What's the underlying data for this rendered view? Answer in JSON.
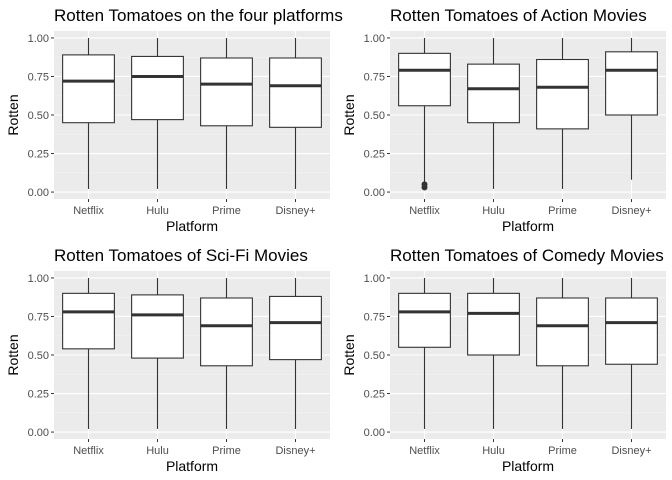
{
  "chart_data": [
    {
      "type": "boxplot",
      "title": "Rotten Tomatoes on the four platforms",
      "xlabel": "Platform",
      "ylabel": "Rotten",
      "ylim": [
        0,
        1
      ],
      "yticks": [
        "0.00",
        "0.25",
        "0.50",
        "0.75",
        "1.00"
      ],
      "categories": [
        "Netflix",
        "Hulu",
        "Prime",
        "Disney+"
      ],
      "boxes": [
        {
          "min": 0.02,
          "q1": 0.45,
          "median": 0.72,
          "q3": 0.89,
          "max": 1.0,
          "outliers": []
        },
        {
          "min": 0.02,
          "q1": 0.47,
          "median": 0.75,
          "q3": 0.88,
          "max": 1.0,
          "outliers": []
        },
        {
          "min": 0.02,
          "q1": 0.43,
          "median": 0.7,
          "q3": 0.87,
          "max": 1.0,
          "outliers": []
        },
        {
          "min": 0.02,
          "q1": 0.42,
          "median": 0.69,
          "q3": 0.87,
          "max": 1.0,
          "outliers": []
        }
      ]
    },
    {
      "type": "boxplot",
      "title": "Rotten Tomatoes of Action Movies",
      "xlabel": "Platform",
      "ylabel": "Rotten",
      "ylim": [
        0,
        1
      ],
      "yticks": [
        "0.00",
        "0.25",
        "0.50",
        "0.75",
        "1.00"
      ],
      "categories": [
        "Netflix",
        "Hulu",
        "Prime",
        "Disney+"
      ],
      "boxes": [
        {
          "min": 0.06,
          "q1": 0.56,
          "median": 0.79,
          "q3": 0.9,
          "max": 1.0,
          "outliers": [
            0.03,
            0.05
          ]
        },
        {
          "min": 0.02,
          "q1": 0.45,
          "median": 0.67,
          "q3": 0.83,
          "max": 1.0,
          "outliers": []
        },
        {
          "min": 0.02,
          "q1": 0.41,
          "median": 0.68,
          "q3": 0.86,
          "max": 1.0,
          "outliers": []
        },
        {
          "min": 0.08,
          "q1": 0.5,
          "median": 0.79,
          "q3": 0.91,
          "max": 1.0,
          "outliers": []
        }
      ]
    },
    {
      "type": "boxplot",
      "title": "Rotten Tomatoes of Sci-Fi Movies",
      "xlabel": "Platform",
      "ylabel": "Rotten",
      "ylim": [
        0,
        1
      ],
      "yticks": [
        "0.00",
        "0.25",
        "0.50",
        "0.75",
        "1.00"
      ],
      "categories": [
        "Netflix",
        "Hulu",
        "Prime",
        "Disney+"
      ],
      "boxes": [
        {
          "min": 0.02,
          "q1": 0.54,
          "median": 0.78,
          "q3": 0.9,
          "max": 1.0,
          "outliers": []
        },
        {
          "min": 0.02,
          "q1": 0.48,
          "median": 0.76,
          "q3": 0.89,
          "max": 1.0,
          "outliers": []
        },
        {
          "min": 0.02,
          "q1": 0.43,
          "median": 0.69,
          "q3": 0.87,
          "max": 1.0,
          "outliers": []
        },
        {
          "min": 0.02,
          "q1": 0.47,
          "median": 0.71,
          "q3": 0.88,
          "max": 1.0,
          "outliers": []
        }
      ]
    },
    {
      "type": "boxplot",
      "title": "Rotten Tomatoes of Comedy Movies",
      "xlabel": "Platform",
      "ylabel": "Rotten",
      "ylim": [
        0,
        1
      ],
      "yticks": [
        "0.00",
        "0.25",
        "0.50",
        "0.75",
        "1.00"
      ],
      "categories": [
        "Netflix",
        "Hulu",
        "Prime",
        "Disney+"
      ],
      "boxes": [
        {
          "min": 0.02,
          "q1": 0.55,
          "median": 0.78,
          "q3": 0.9,
          "max": 1.0,
          "outliers": []
        },
        {
          "min": 0.02,
          "q1": 0.5,
          "median": 0.77,
          "q3": 0.9,
          "max": 1.0,
          "outliers": []
        },
        {
          "min": 0.02,
          "q1": 0.43,
          "median": 0.69,
          "q3": 0.87,
          "max": 1.0,
          "outliers": []
        },
        {
          "min": 0.02,
          "q1": 0.44,
          "median": 0.71,
          "q3": 0.87,
          "max": 1.0,
          "outliers": []
        }
      ]
    }
  ]
}
